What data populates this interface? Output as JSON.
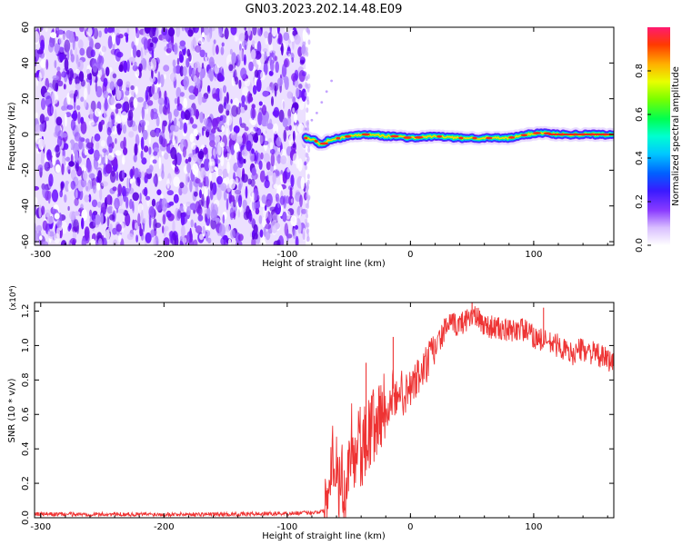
{
  "title": "GN03.2023.202.14.48.E09",
  "colors": {
    "snr_line": "#ee3333",
    "noise": "#7a1cf0",
    "colormap": [
      "#ffffff",
      "#e6d2ff",
      "#a56bff",
      "#6a10ff",
      "#1a1aff",
      "#00a8ff",
      "#00ffe1",
      "#00ff66",
      "#3cff00",
      "#c8ff00",
      "#ffd000",
      "#ff6a00",
      "#ff1a1a",
      "#ff1a6e"
    ]
  },
  "chart_data": [
    {
      "type": "heatmap",
      "name": "spectrogram",
      "xlabel": "Height of straight line (km)",
      "ylabel": "Frequency (Hz)",
      "xlim": [
        -305,
        165
      ],
      "ylim": [
        -62,
        60
      ],
      "xticks": [
        "-300",
        "-200",
        "-100",
        "0",
        "100"
      ],
      "xtick_values": [
        -300,
        -200,
        -100,
        0,
        100
      ],
      "yticks": [
        "60",
        "40",
        "20",
        "0",
        "-20",
        "-40",
        "-60"
      ],
      "ytick_values": [
        60,
        40,
        20,
        0,
        -20,
        -40,
        -60
      ],
      "noise_region": [
        -305,
        -85
      ],
      "signal_start": -85,
      "signal_track": {
        "x": [
          -85,
          -78,
          -72,
          -66,
          -58,
          -50,
          -40,
          -30,
          -20,
          -10,
          0,
          20,
          40,
          60,
          80,
          88,
          95,
          105,
          120,
          165
        ],
        "y": [
          -2,
          -3,
          -6,
          -3,
          -2,
          -1,
          0,
          0,
          -1,
          -1,
          -2,
          -1,
          -2,
          -2,
          -2,
          -1,
          0,
          1,
          0,
          0
        ],
        "amplitude": [
          0.55,
          0.5,
          0.7,
          0.6,
          0.65,
          0.7,
          0.75,
          0.72,
          0.75,
          0.72,
          0.72,
          0.78,
          0.8,
          0.82,
          0.85,
          0.75,
          0.8,
          0.9,
          0.95,
          0.95
        ]
      },
      "faint_trace": {
        "x": [
          -85,
          -80,
          -76,
          -72,
          -68,
          -64
        ],
        "y": [
          3,
          8,
          12,
          18,
          24,
          30
        ]
      }
    },
    {
      "type": "colorbar",
      "label": "Normalized spectral amplitude",
      "range": [
        0,
        1
      ],
      "ticks": [
        "0.0",
        "0.2",
        "0.4",
        "0.6",
        "0.8"
      ],
      "tick_values": [
        0,
        0.2,
        0.4,
        0.6,
        0.8
      ]
    },
    {
      "type": "line",
      "name": "snr",
      "xlabel": "Height of straight line (km)",
      "ylabel": "SNR (10 * v/v)",
      "scale_label": "(x10⁴)",
      "xlim": [
        -305,
        165
      ],
      "ylim": [
        0,
        1.25
      ],
      "xticks": [
        "-300",
        "-200",
        "-100",
        "0",
        "100"
      ],
      "xtick_values": [
        -300,
        -200,
        -100,
        0,
        100
      ],
      "yticks": [
        "0.0",
        "0.2",
        "0.4",
        "0.6",
        "0.8",
        "1.0",
        "1.2"
      ],
      "ytick_values": [
        0,
        0.2,
        0.4,
        0.6,
        0.8,
        1.0,
        1.2
      ],
      "x": [
        -305,
        -250,
        -200,
        -150,
        -100,
        -80,
        -70,
        -66,
        -64,
        -62,
        -60,
        -58,
        -56,
        -54,
        -52,
        -50,
        -48,
        -46,
        -44,
        -42,
        -40,
        -38,
        -36,
        -34,
        -32,
        -30,
        -28,
        -25,
        -22,
        -20,
        -18,
        -16,
        -14,
        -12,
        -10,
        -5,
        0,
        10,
        20,
        30,
        40,
        50,
        60,
        70,
        80,
        90,
        100,
        110,
        120,
        130,
        140,
        150,
        165
      ],
      "y": [
        0.02,
        0.02,
        0.02,
        0.02,
        0.025,
        0.03,
        0.04,
        0.2,
        0.42,
        0.3,
        0.38,
        0.1,
        0.35,
        0.03,
        0.22,
        0.3,
        0.5,
        0.4,
        0.3,
        0.6,
        0.35,
        0.45,
        0.4,
        0.5,
        0.5,
        0.55,
        0.5,
        0.6,
        0.65,
        0.55,
        0.7,
        0.6,
        0.75,
        0.65,
        0.78,
        0.7,
        0.75,
        0.85,
        0.98,
        1.12,
        1.12,
        1.18,
        1.12,
        1.1,
        1.08,
        1.1,
        1.05,
        1.02,
        1.0,
        0.95,
        0.98,
        0.95,
        0.9
      ],
      "spikes": [
        {
          "x": -36,
          "y": 0.9
        },
        {
          "x": -14,
          "y": 1.05
        },
        {
          "x": 50,
          "y": 1.25
        },
        {
          "x": 108,
          "y": 1.22
        }
      ]
    }
  ]
}
